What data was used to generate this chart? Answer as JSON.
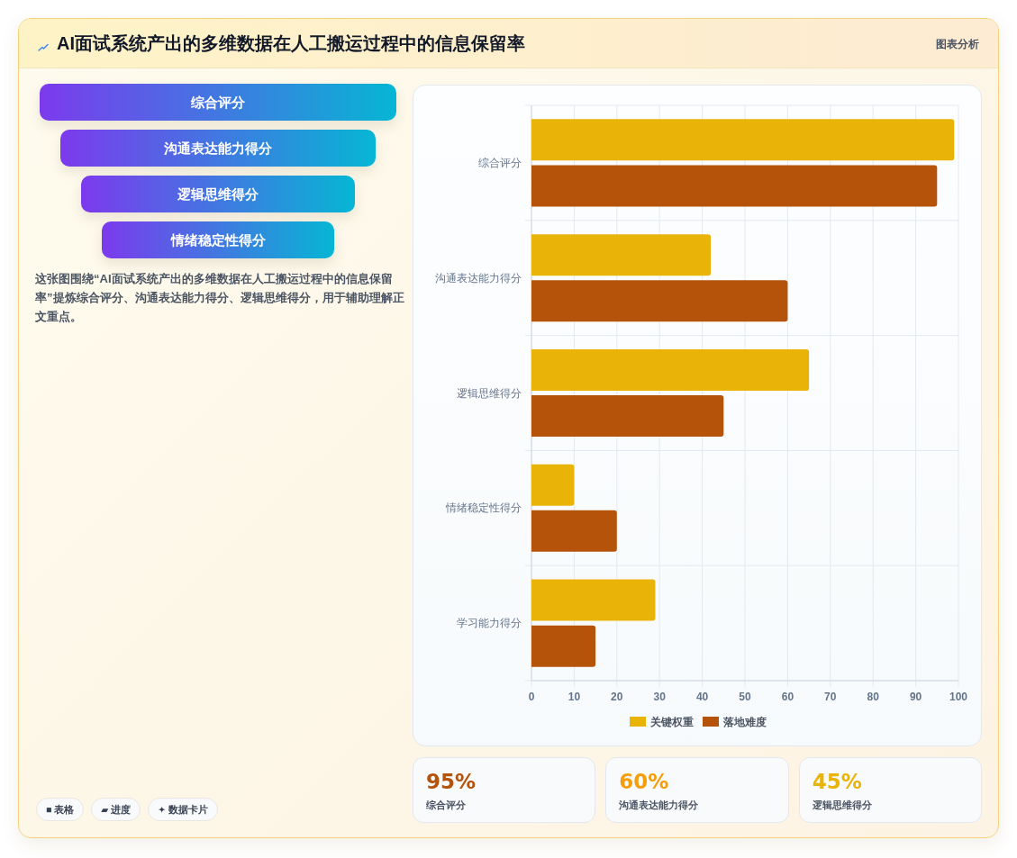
{
  "chart_data": [
    {
      "type": "other",
      "title": "AI面试系统产出的多维数据在人工搬运过程中的信息保留率",
      "subtitle": "图表分析",
      "categories": [
        "综合评分",
        "沟通表达能力得分",
        "逻辑思维得分",
        "情绪稳定性得分"
      ],
      "annotations": [
        "这张图围绕“AI面试系统产出的多维数据在人工搬运过程中的信息保留率”提炼综合评分、沟通表达能力得分、逻辑思维得分，用于辅助理解正文重点。",
        "■ 表格",
        "▰ 进度",
        "✦ 数据卡片"
      ]
    },
    {
      "type": "bar",
      "orientation": "horizontal",
      "categories": [
        "综合评分",
        "沟通表达能力得分",
        "逻辑思维得分",
        "情绪稳定性得分",
        "学习能力得分"
      ],
      "series": [
        {
          "name": "关键权重",
          "color": "#eab308",
          "values": [
            99,
            42,
            65,
            10,
            29
          ]
        },
        {
          "name": "落地难度",
          "color": "#b45309",
          "values": [
            95,
            60,
            45,
            20,
            15
          ]
        }
      ],
      "xlim": [
        0,
        100
      ],
      "xticks": [
        0,
        10,
        20,
        30,
        40,
        50,
        60,
        70,
        80,
        90,
        100
      ],
      "grid": true,
      "legend": "bottom"
    },
    {
      "type": "other",
      "annotations": [
        "95%",
        "综合评分",
        "60%",
        "沟通表达能力得分",
        "45%",
        "逻辑思维得分"
      ]
    }
  ]
}
